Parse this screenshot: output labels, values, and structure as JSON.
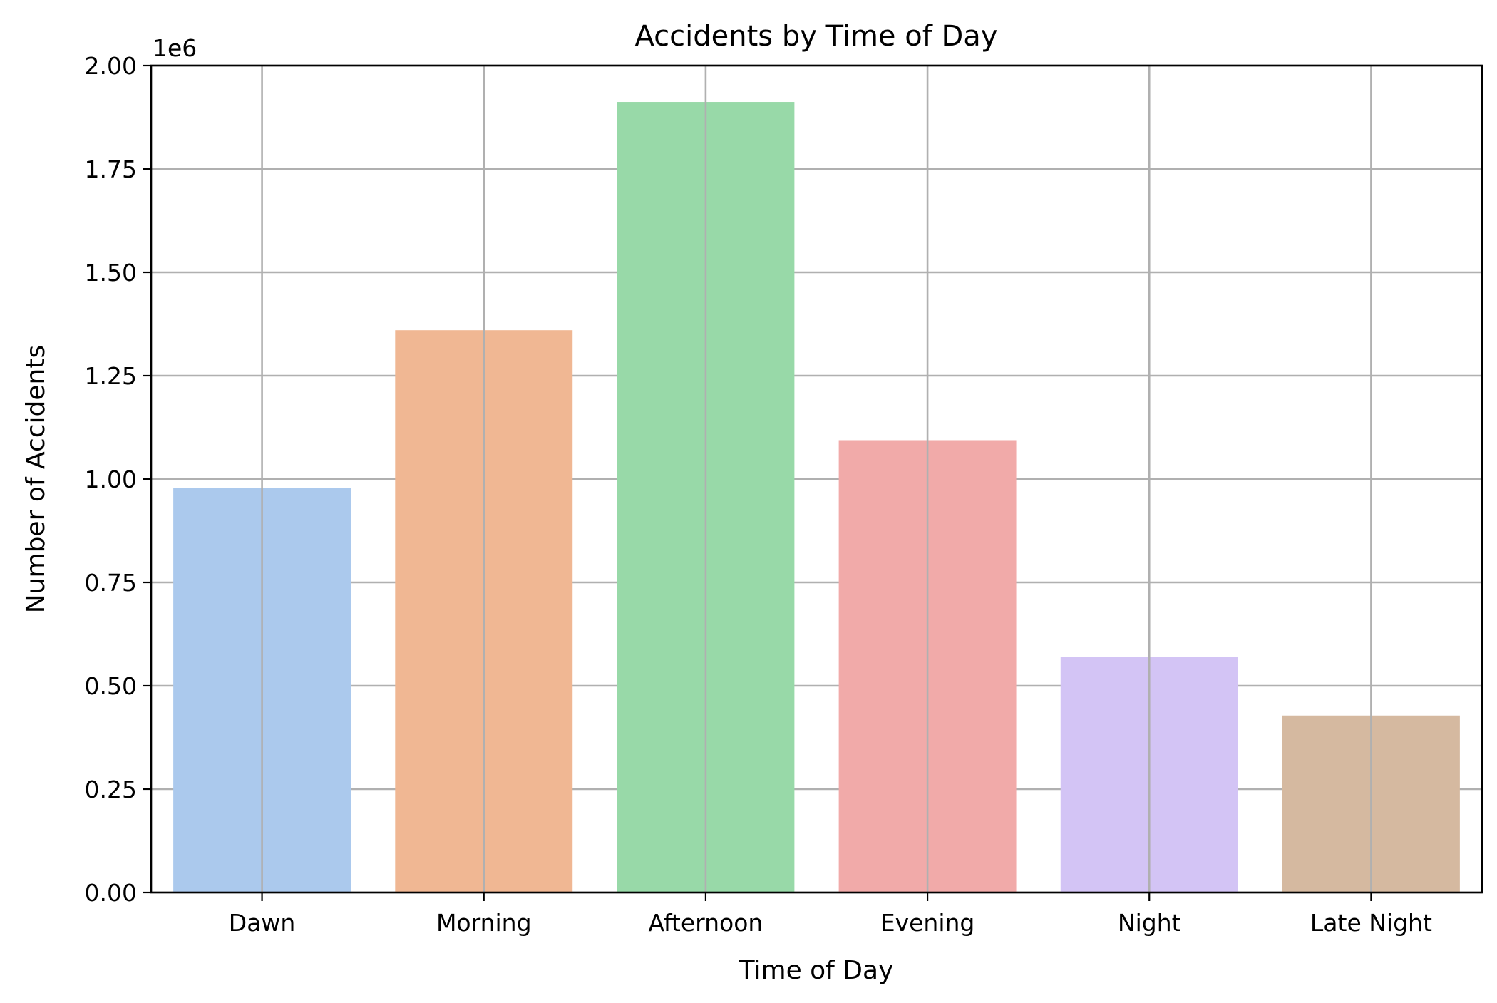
{
  "chart_data": {
    "type": "bar",
    "title": "Accidents by Time of Day",
    "xlabel": "Time of Day",
    "ylabel": "Number of Accidents",
    "y_scale_label": "1e6",
    "categories": [
      "Dawn",
      "Morning",
      "Afternoon",
      "Evening",
      "Night",
      "Late Night"
    ],
    "values": [
      978000,
      1360000,
      1912000,
      1094000,
      570000,
      428000
    ],
    "colors": [
      "#abc9ed",
      "#f0b793",
      "#98d9a8",
      "#f1aaa9",
      "#d3c4f5",
      "#d5b9a0"
    ],
    "ylim": [
      0,
      2000000
    ],
    "yticks": [
      0,
      250000,
      500000,
      750000,
      1000000,
      1250000,
      1500000,
      1750000,
      2000000
    ],
    "ytick_labels": [
      "0.00",
      "0.25",
      "0.50",
      "0.75",
      "1.00",
      "1.25",
      "1.50",
      "1.75",
      "2.00"
    ],
    "grid": true,
    "legend": false
  }
}
